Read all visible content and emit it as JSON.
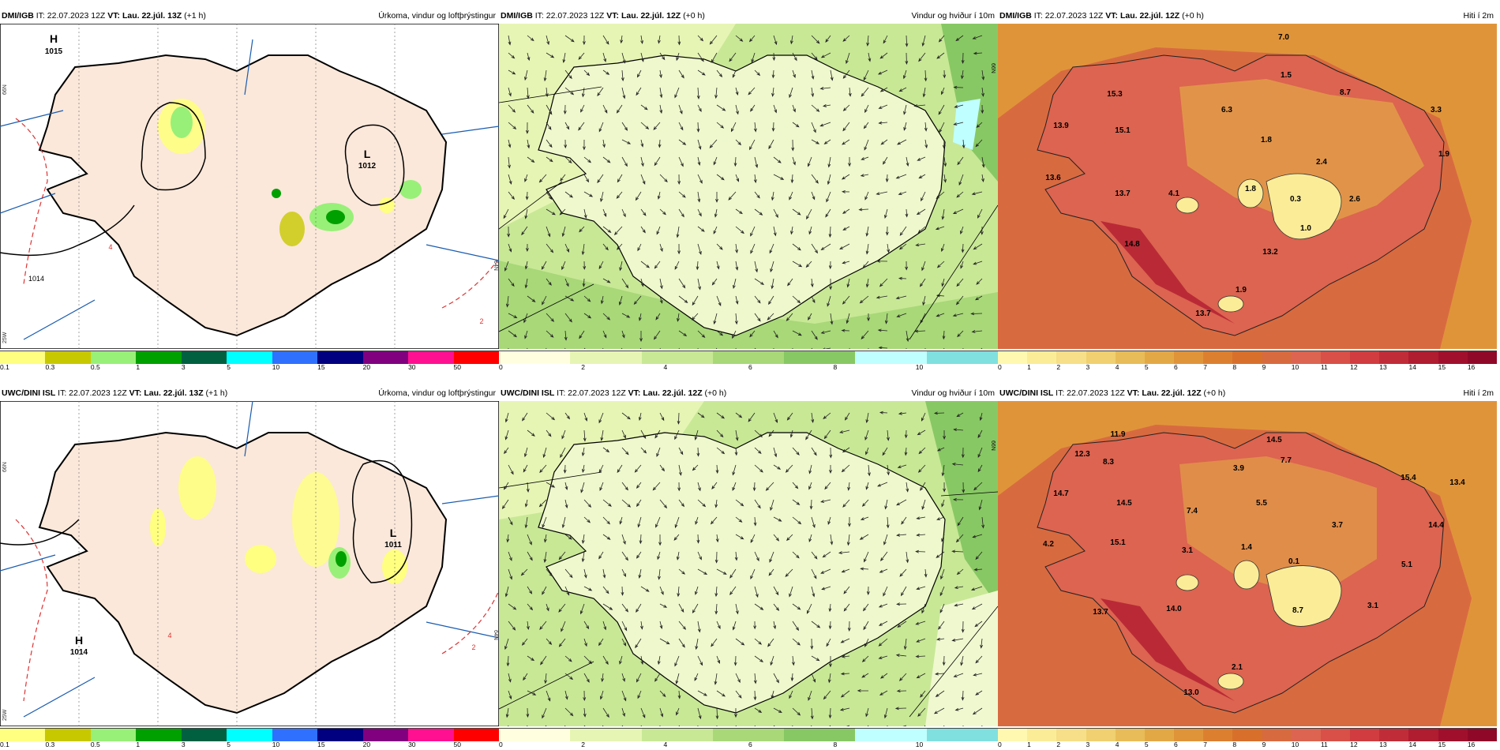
{
  "precip_legend": {
    "colors": [
      "#ffff80",
      "#c8c800",
      "#98f078",
      "#00a000",
      "#006040",
      "#00ffff",
      "#3070ff",
      "#000080",
      "#800080",
      "#ff1090",
      "#ff0000"
    ],
    "ticks": [
      "0.1",
      "0.3",
      "0.5",
      "1",
      "3",
      "5",
      "10",
      "15",
      "20",
      "30",
      "50"
    ]
  },
  "wind_legend": {
    "colors": [
      "#ffffe0",
      "#e6f5b4",
      "#c8e896",
      "#a8d878",
      "#88c864",
      "#c0ffff",
      "#80e0e0"
    ],
    "ticks": [
      "0",
      "2",
      "4",
      "6",
      "8",
      "10"
    ]
  },
  "temp_legend": {
    "colors": [
      "#fff8b0",
      "#fbec98",
      "#f6df88",
      "#f0d070",
      "#e8bc58",
      "#e3a846",
      "#e0943a",
      "#dc8030",
      "#d8702c",
      "#d86a40",
      "#dc6450",
      "#d85048",
      "#d03c40",
      "#c02c38",
      "#b01c30",
      "#a0102c",
      "#900828"
    ],
    "ticks": [
      "0",
      "1",
      "2",
      "3",
      "4",
      "5",
      "6",
      "7",
      "8",
      "9",
      "10",
      "11",
      "12",
      "13",
      "14",
      "15",
      "16"
    ]
  },
  "rows": [
    {
      "model": "DMI/IGB",
      "it": "IT: 22.07.2023 12Z",
      "panels": [
        {
          "vt_label": "VT:",
          "vt": "Lau. 22.júl. 13Z",
          "lead": "(+1 h)",
          "title": "Úrkoma, vindur og loftþrýstingur",
          "pressure_labels": [
            {
              "t": "H",
              "v": "1015"
            },
            {
              "t": "L",
              "v": "1012"
            }
          ],
          "isobar_values": [
            "1014",
            "4",
            "2"
          ],
          "edge_labels": [
            "66N",
            "25W",
            "64N"
          ]
        },
        {
          "vt_label": "VT:",
          "vt": "Lau. 22.júl. 12Z",
          "lead": "(+0 h)",
          "title": "Vindur og hviður í 10m",
          "edge_labels": [
            "66N"
          ]
        },
        {
          "vt_label": "VT:",
          "vt": "Lau. 22.júl. 12Z",
          "lead": "(+0 h)",
          "title": "Hiti í 2m",
          "temps": [
            "7.0",
            "15.3",
            "1.5",
            "8.7",
            "6.3",
            "3.3",
            "13.9",
            "15.1",
            "1.8",
            "2.4",
            "1.9",
            "13.6",
            "13.7",
            "4.1",
            "1.8",
            "0.3",
            "2.6",
            "1.0",
            "14.8",
            "13.2",
            "1.9",
            "13.7"
          ]
        }
      ]
    },
    {
      "model": "UWC/DINI ISL",
      "it": "IT: 22.07.2023 12Z",
      "panels": [
        {
          "vt_label": "VT:",
          "vt": "Lau. 22.júl. 13Z",
          "lead": "(+1 h)",
          "title": "Úrkoma, vindur og loftþrýstingur",
          "pressure_labels": [
            {
              "t": "L",
              "v": "1011"
            },
            {
              "t": "H",
              "v": "1014"
            }
          ],
          "isobar_values": [
            "2",
            "4"
          ],
          "edge_labels": [
            "66N",
            "25W",
            "64N"
          ]
        },
        {
          "vt_label": "VT:",
          "vt": "Lau. 22.júl. 12Z",
          "lead": "(+0 h)",
          "title": "Vindur og hviður í 10m",
          "edge_labels": [
            "66N"
          ]
        },
        {
          "vt_label": "VT:",
          "vt": "Lau. 22.júl. 12Z",
          "lead": "(+0 h)",
          "title": "Hiti í 2m",
          "temps": [
            "11.9",
            "14.5",
            "12.3",
            "8.3",
            "3.9",
            "7.7",
            "15.4",
            "13.4",
            "14.7",
            "14.5",
            "7.4",
            "5.5",
            "14.4",
            "3.7",
            "4.2",
            "15.1",
            "3.1",
            "1.4",
            "0.1",
            "5.1",
            "14.0",
            "8.7",
            "13.7",
            "3.1",
            "2.1",
            "13.0"
          ]
        }
      ]
    }
  ]
}
